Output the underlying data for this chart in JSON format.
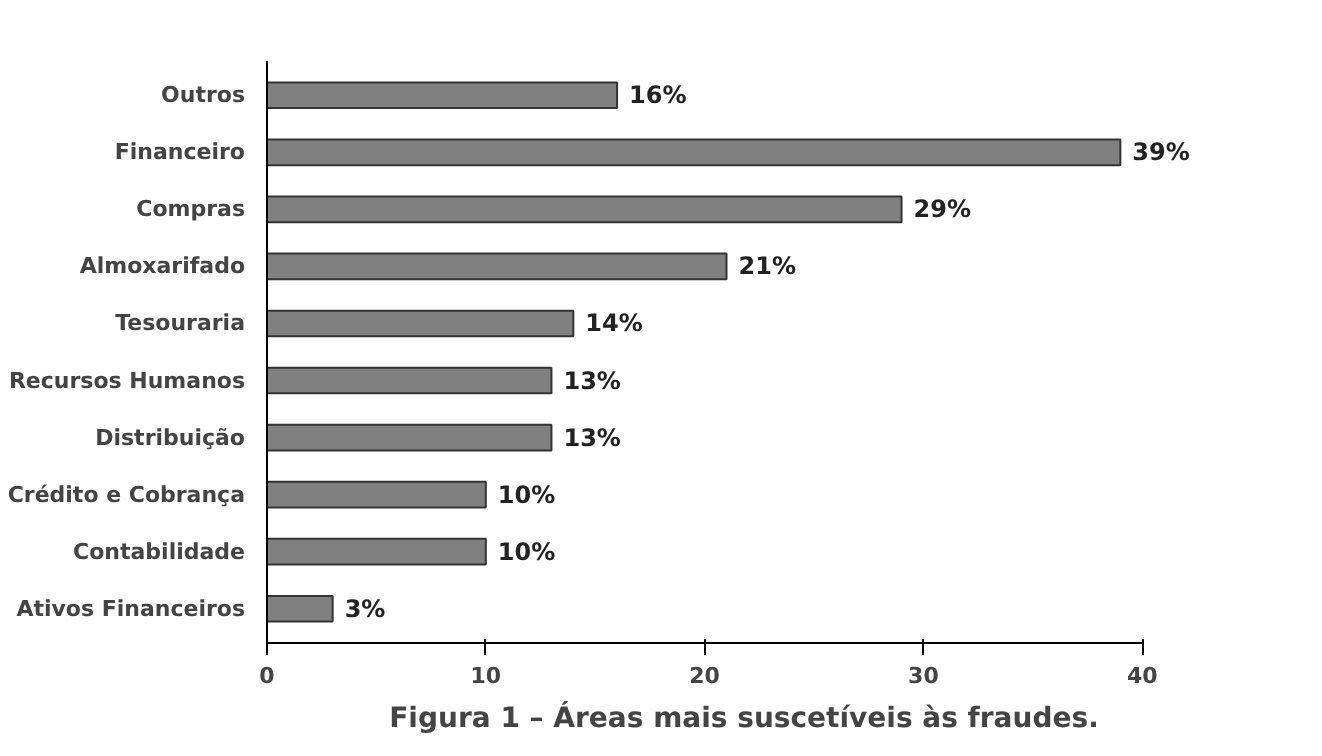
{
  "chart_data": {
    "type": "bar",
    "orientation": "horizontal",
    "categories": [
      "Outros",
      "Financeiro",
      "Compras",
      "Almoxarifado",
      "Tesouraria",
      "Recursos Humanos",
      "Distribuição",
      "Crédito e Cobrança",
      "Contabilidade",
      "Ativos Financeiros"
    ],
    "values": [
      16,
      39,
      29,
      21,
      14,
      13,
      13,
      10,
      10,
      3
    ],
    "value_labels": [
      "16%",
      "39%",
      "29%",
      "21%",
      "14%",
      "13%",
      "13%",
      "10%",
      "10%",
      "3%"
    ],
    "color": "#808080",
    "xlim": [
      0,
      40
    ],
    "xticks": [
      0,
      10,
      20,
      30,
      40
    ],
    "grid": false,
    "annotations": [
      "Figura 1 – Áreas mais suscetíveis às fraudes."
    ]
  }
}
